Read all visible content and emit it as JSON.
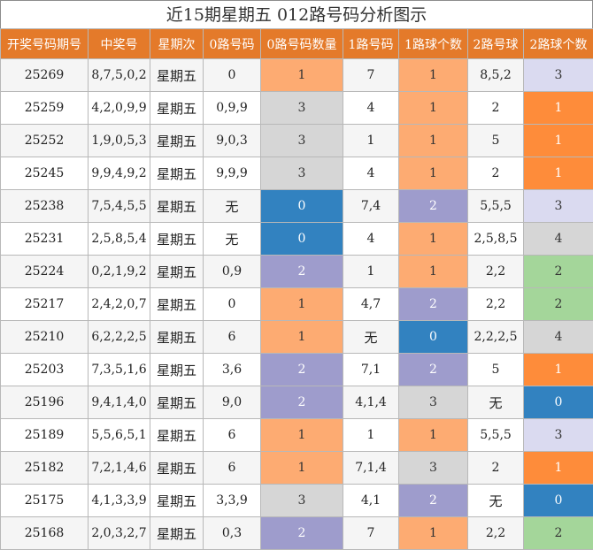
{
  "title": "近15期星期五 012路号码分析图示",
  "headers": [
    "开奖号码期号",
    "中奖号",
    "星期次",
    "0路号码",
    "0路号码数量",
    "1路号码",
    "1路球个数",
    "2路号球",
    "2路球个数"
  ],
  "colors": {
    "orange": "#fdab72",
    "gray": "#d6d6d6",
    "blue": "#3282c0",
    "purple": "#9e9ccc",
    "dark_orange": "#fe8c3a",
    "lilac": "#dadaf0",
    "green": "#a4d69a",
    "header": "#e47a2a"
  },
  "rows": [
    {
      "issue": "25269",
      "numbers": "8,7,5,0,2",
      "weekday": "星期五",
      "r0": "0",
      "r0_count": "1",
      "r1": "7",
      "r1_count": "1",
      "r2": "8,5,2",
      "r2_count": "3"
    },
    {
      "issue": "25259",
      "numbers": "4,2,0,9,9",
      "weekday": "星期五",
      "r0": "0,9,9",
      "r0_count": "3",
      "r1": "4",
      "r1_count": "1",
      "r2": "2",
      "r2_count": "1"
    },
    {
      "issue": "25252",
      "numbers": "1,9,0,5,3",
      "weekday": "星期五",
      "r0": "9,0,3",
      "r0_count": "3",
      "r1": "1",
      "r1_count": "1",
      "r2": "5",
      "r2_count": "1"
    },
    {
      "issue": "25245",
      "numbers": "9,9,4,9,2",
      "weekday": "星期五",
      "r0": "9,9,9",
      "r0_count": "3",
      "r1": "4",
      "r1_count": "1",
      "r2": "2",
      "r2_count": "1"
    },
    {
      "issue": "25238",
      "numbers": "7,5,4,5,5",
      "weekday": "星期五",
      "r0": "无",
      "r0_count": "0",
      "r1": "7,4",
      "r1_count": "2",
      "r2": "5,5,5",
      "r2_count": "3"
    },
    {
      "issue": "25231",
      "numbers": "2,5,8,5,4",
      "weekday": "星期五",
      "r0": "无",
      "r0_count": "0",
      "r1": "4",
      "r1_count": "1",
      "r2": "2,5,8,5",
      "r2_count": "4"
    },
    {
      "issue": "25224",
      "numbers": "0,2,1,9,2",
      "weekday": "星期五",
      "r0": "0,9",
      "r0_count": "2",
      "r1": "1",
      "r1_count": "1",
      "r2": "2,2",
      "r2_count": "2"
    },
    {
      "issue": "25217",
      "numbers": "2,4,2,0,7",
      "weekday": "星期五",
      "r0": "0",
      "r0_count": "1",
      "r1": "4,7",
      "r1_count": "2",
      "r2": "2,2",
      "r2_count": "2"
    },
    {
      "issue": "25210",
      "numbers": "6,2,2,2,5",
      "weekday": "星期五",
      "r0": "6",
      "r0_count": "1",
      "r1": "无",
      "r1_count": "0",
      "r2": "2,2,2,5",
      "r2_count": "4"
    },
    {
      "issue": "25203",
      "numbers": "7,3,5,1,6",
      "weekday": "星期五",
      "r0": "3,6",
      "r0_count": "2",
      "r1": "7,1",
      "r1_count": "2",
      "r2": "5",
      "r2_count": "1"
    },
    {
      "issue": "25196",
      "numbers": "9,4,1,4,0",
      "weekday": "星期五",
      "r0": "9,0",
      "r0_count": "2",
      "r1": "4,1,4",
      "r1_count": "3",
      "r2": "无",
      "r2_count": "0"
    },
    {
      "issue": "25189",
      "numbers": "5,5,6,5,1",
      "weekday": "星期五",
      "r0": "6",
      "r0_count": "1",
      "r1": "1",
      "r1_count": "1",
      "r2": "5,5,5",
      "r2_count": "3"
    },
    {
      "issue": "25182",
      "numbers": "7,2,1,4,6",
      "weekday": "星期五",
      "r0": "6",
      "r0_count": "1",
      "r1": "7,1,4",
      "r1_count": "3",
      "r2": "2",
      "r2_count": "1"
    },
    {
      "issue": "25175",
      "numbers": "4,1,3,3,9",
      "weekday": "星期五",
      "r0": "3,3,9",
      "r0_count": "3",
      "r1": "4,1",
      "r1_count": "2",
      "r2": "无",
      "r2_count": "0"
    },
    {
      "issue": "25168",
      "numbers": "2,0,3,2,7",
      "weekday": "星期五",
      "r0": "0,3",
      "r0_count": "2",
      "r1": "7",
      "r1_count": "1",
      "r2": "2,2",
      "r2_count": "2"
    }
  ]
}
